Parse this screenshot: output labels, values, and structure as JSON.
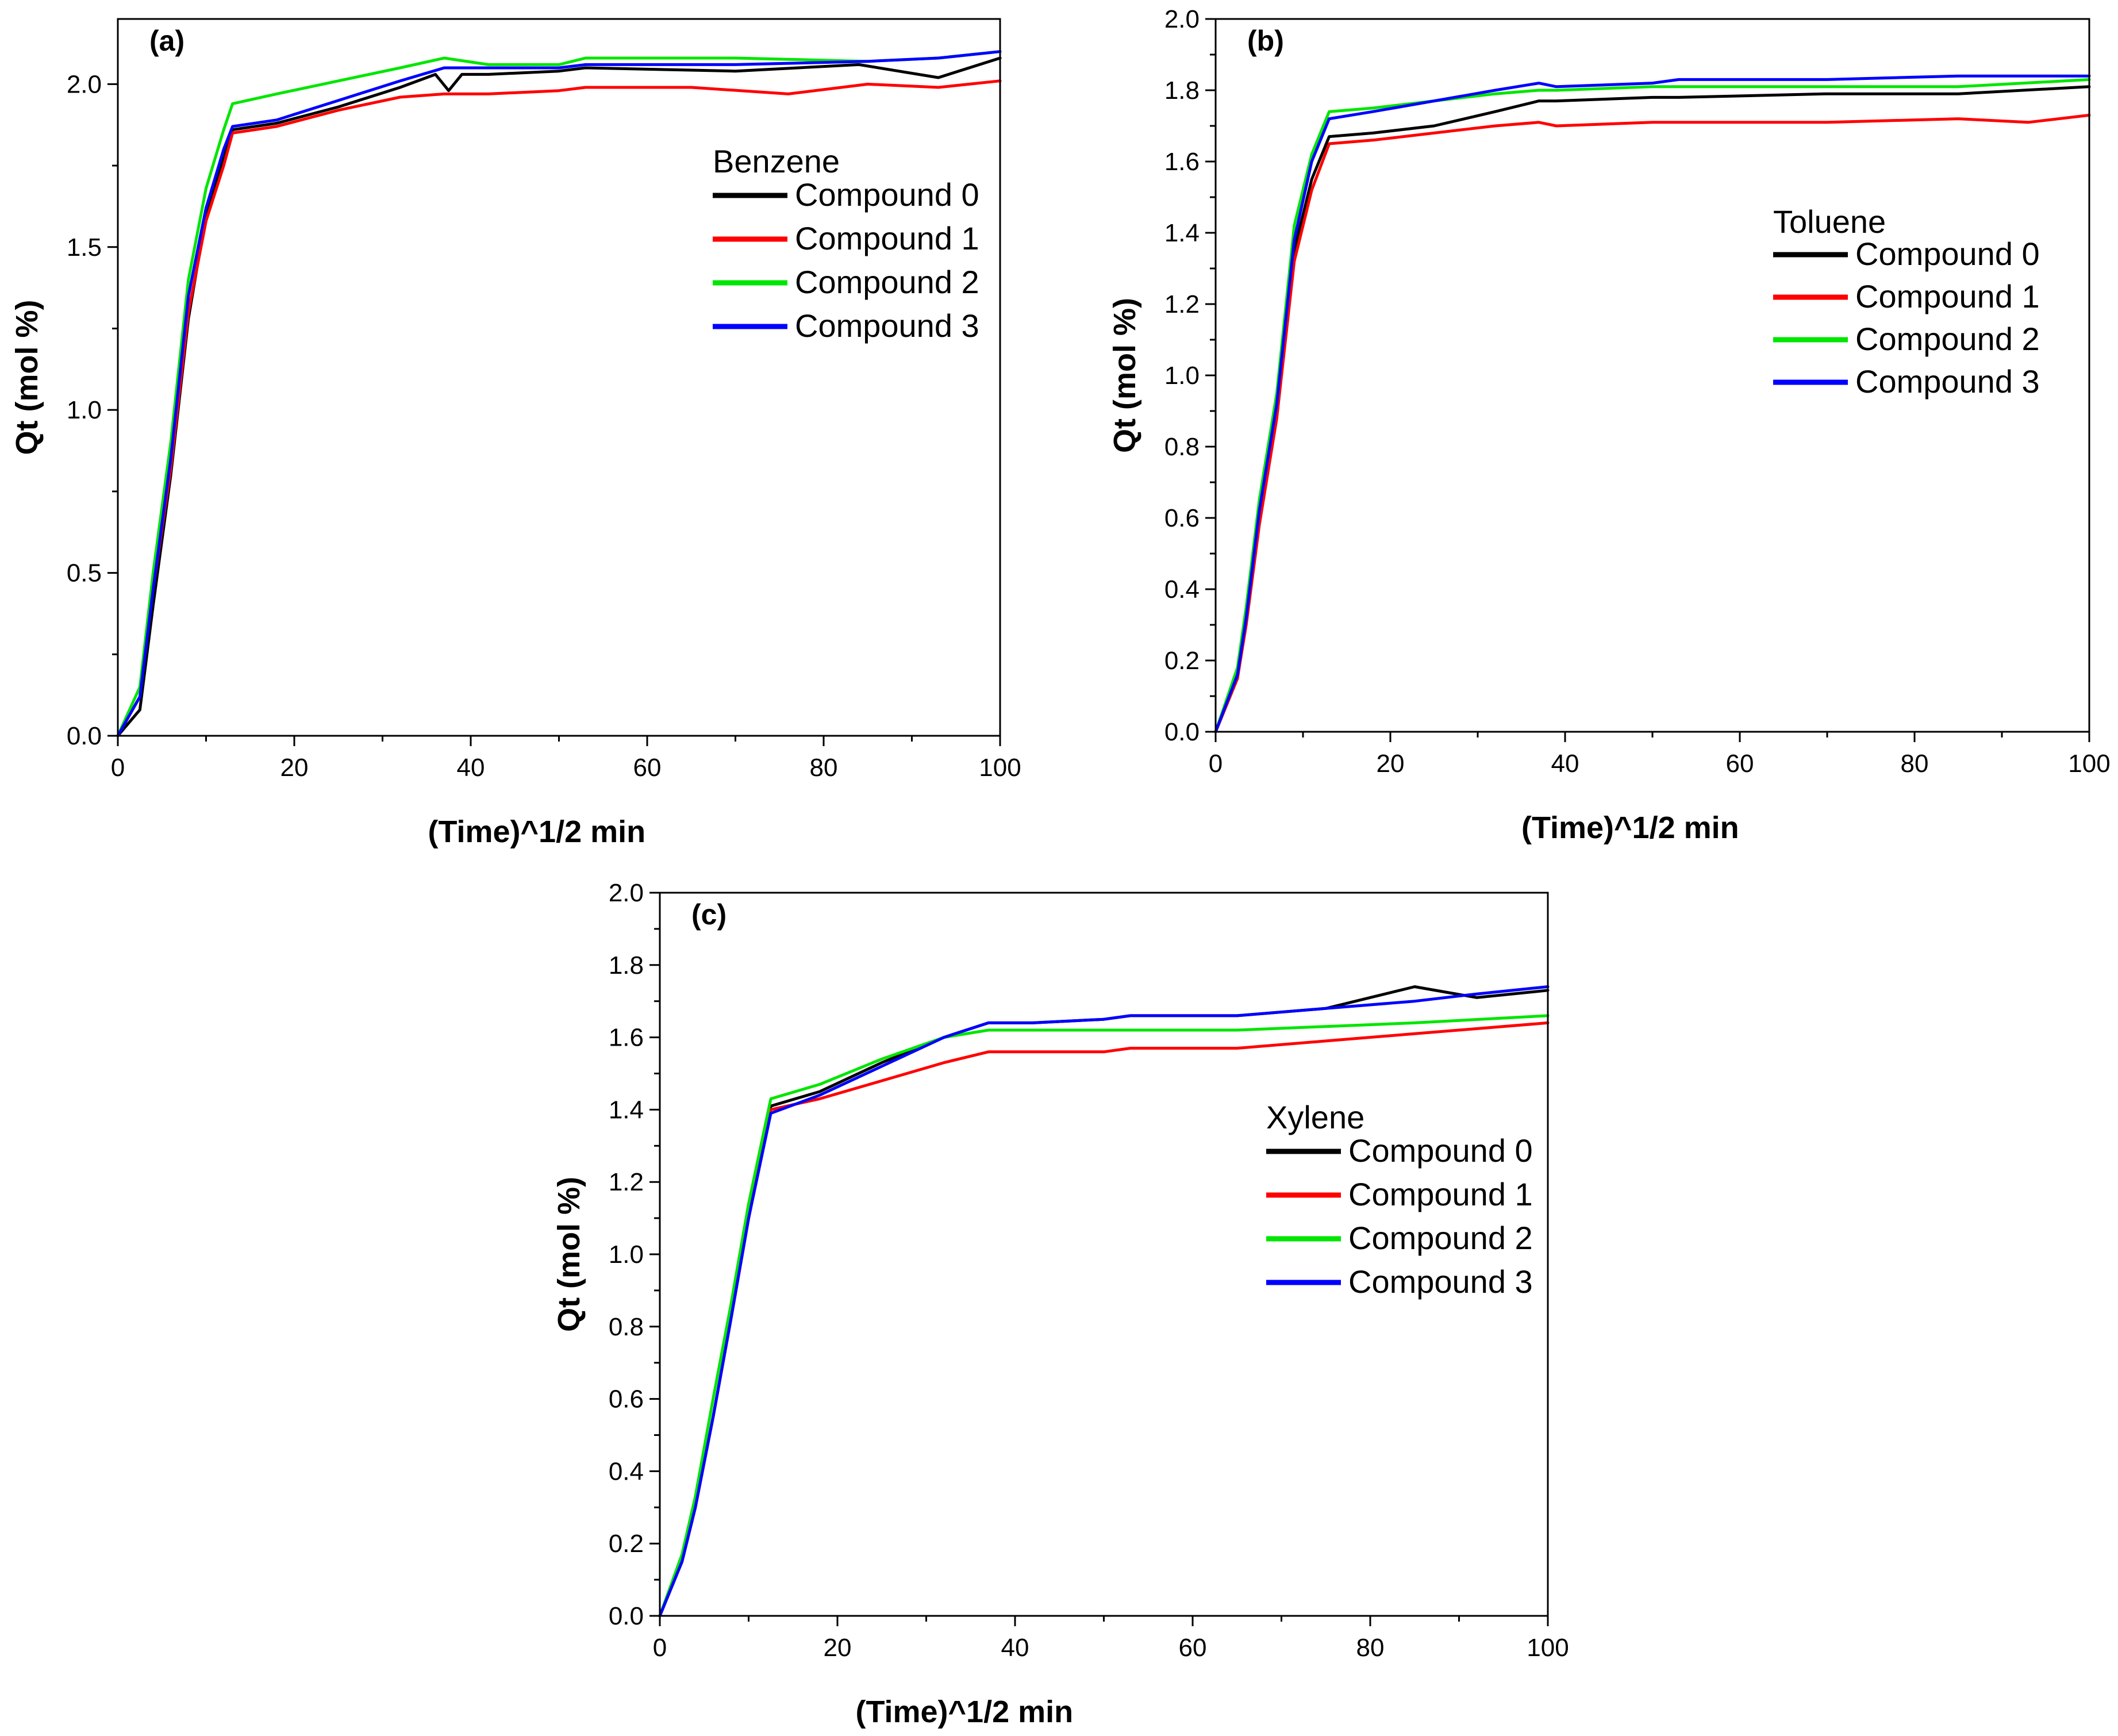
{
  "colors": {
    "compound0": "#000000",
    "compound1": "#ff0000",
    "compound2": "#00e600",
    "compound3": "#0000ff"
  },
  "chart_data": [
    {
      "type": "line",
      "panel": "(a)",
      "legend_title": "Benzene",
      "xlabel": "(Time)^1/2 min",
      "ylabel": "Qt (mol %)",
      "xlim": [
        0,
        100
      ],
      "ylim": [
        0,
        2.2
      ],
      "xticks": [
        0,
        20,
        40,
        60,
        80,
        100
      ],
      "yticks": [
        0.0,
        0.5,
        1.0,
        1.5,
        2.0
      ],
      "ytick_labels": [
        "0.0",
        "0.5",
        "1.0",
        "1.5",
        "2.0"
      ],
      "series": [
        {
          "name": "Compound 0",
          "color": "#000000",
          "x": [
            0,
            2.5,
            4,
            6,
            8,
            10,
            12,
            13,
            18,
            25,
            32,
            36,
            37.5,
            39,
            42,
            50,
            53,
            70,
            84,
            93,
            100
          ],
          "y": [
            0,
            0.08,
            0.4,
            0.8,
            1.28,
            1.6,
            1.78,
            1.86,
            1.88,
            1.93,
            1.99,
            2.03,
            1.98,
            2.03,
            2.03,
            2.04,
            2.05,
            2.04,
            2.06,
            2.02,
            2.08
          ]
        },
        {
          "name": "Compound 1",
          "color": "#ff0000",
          "x": [
            0,
            2.5,
            4,
            6,
            8,
            10,
            12,
            13,
            18,
            25,
            32,
            37,
            42,
            50,
            53,
            65,
            76,
            85,
            93,
            100
          ],
          "y": [
            0,
            0.12,
            0.45,
            0.82,
            1.3,
            1.58,
            1.75,
            1.85,
            1.87,
            1.92,
            1.96,
            1.97,
            1.97,
            1.98,
            1.99,
            1.99,
            1.97,
            2.0,
            1.99,
            2.01
          ]
        },
        {
          "name": "Compound 2",
          "color": "#00e600",
          "x": [
            0,
            2.5,
            4,
            6,
            8,
            10,
            12,
            13,
            18,
            25,
            32,
            37,
            42,
            50,
            53,
            70,
            85,
            93,
            100
          ],
          "y": [
            0,
            0.15,
            0.5,
            0.9,
            1.4,
            1.68,
            1.86,
            1.94,
            1.97,
            2.01,
            2.05,
            2.08,
            2.06,
            2.06,
            2.08,
            2.08,
            2.07,
            2.08,
            2.1
          ]
        },
        {
          "name": "Compound 3",
          "color": "#0000ff",
          "x": [
            0,
            2.5,
            4,
            6,
            8,
            10,
            12,
            13,
            18,
            25,
            32,
            37,
            39,
            42,
            50,
            53,
            70,
            85,
            93,
            100
          ],
          "y": [
            0,
            0.12,
            0.45,
            0.85,
            1.35,
            1.62,
            1.8,
            1.87,
            1.89,
            1.95,
            2.01,
            2.05,
            2.05,
            2.05,
            2.05,
            2.06,
            2.06,
            2.07,
            2.08,
            2.1
          ]
        }
      ]
    },
    {
      "type": "line",
      "panel": "(b)",
      "legend_title": "Toluene",
      "xlabel": "(Time)^1/2 min",
      "ylabel": "Qt (mol %)",
      "xlim": [
        0,
        100
      ],
      "ylim": [
        0,
        2.0
      ],
      "xticks": [
        0,
        20,
        40,
        60,
        80,
        100
      ],
      "yticks": [
        0.0,
        0.2,
        0.4,
        0.6,
        0.8,
        1.0,
        1.2,
        1.4,
        1.6,
        1.8,
        2.0
      ],
      "ytick_labels": [
        "0.0",
        "0.2",
        "0.4",
        "0.6",
        "0.8",
        "1.0",
        "1.2",
        "1.4",
        "1.6",
        "1.8",
        "2.0"
      ],
      "series": [
        {
          "name": "Compound 0",
          "color": "#000000",
          "x": [
            0,
            2.5,
            3.5,
            5,
            7,
            9,
            11,
            13,
            18,
            25,
            32,
            37,
            39,
            50,
            53,
            70,
            85,
            100
          ],
          "y": [
            0,
            0.15,
            0.32,
            0.6,
            0.9,
            1.35,
            1.55,
            1.67,
            1.68,
            1.7,
            1.74,
            1.77,
            1.77,
            1.78,
            1.78,
            1.79,
            1.79,
            1.81
          ]
        },
        {
          "name": "Compound 1",
          "color": "#ff0000",
          "x": [
            0,
            2.5,
            3.5,
            5,
            7,
            9,
            11,
            13,
            18,
            25,
            32,
            37,
            39,
            50,
            53,
            70,
            85,
            93,
            100
          ],
          "y": [
            0,
            0.15,
            0.3,
            0.58,
            0.88,
            1.32,
            1.52,
            1.65,
            1.66,
            1.68,
            1.7,
            1.71,
            1.7,
            1.71,
            1.71,
            1.71,
            1.72,
            1.71,
            1.73
          ]
        },
        {
          "name": "Compound 2",
          "color": "#00e600",
          "x": [
            0,
            2.5,
            3.5,
            5,
            7,
            9,
            11,
            13,
            18,
            25,
            32,
            37,
            39,
            50,
            53,
            70,
            85,
            100
          ],
          "y": [
            0,
            0.18,
            0.35,
            0.65,
            0.95,
            1.42,
            1.62,
            1.74,
            1.75,
            1.77,
            1.79,
            1.8,
            1.8,
            1.81,
            1.81,
            1.81,
            1.81,
            1.83
          ]
        },
        {
          "name": "Compound 3",
          "color": "#0000ff",
          "x": [
            0,
            2.5,
            3.5,
            5,
            7,
            9,
            11,
            13,
            18,
            25,
            32,
            37,
            39,
            50,
            53,
            70,
            85,
            100
          ],
          "y": [
            0,
            0.16,
            0.32,
            0.62,
            0.92,
            1.38,
            1.6,
            1.72,
            1.74,
            1.77,
            1.8,
            1.82,
            1.81,
            1.82,
            1.83,
            1.83,
            1.84,
            1.84
          ]
        }
      ]
    },
    {
      "type": "line",
      "panel": "(c)",
      "legend_title": "Xylene",
      "xlabel": "(Time)^1/2 min",
      "ylabel": "Qt (mol %)",
      "xlim": [
        0,
        100
      ],
      "ylim": [
        0,
        2.0
      ],
      "xticks": [
        0,
        20,
        40,
        60,
        80,
        100
      ],
      "yticks": [
        0.0,
        0.2,
        0.4,
        0.6,
        0.8,
        1.0,
        1.2,
        1.4,
        1.6,
        1.8,
        2.0
      ],
      "ytick_labels": [
        "0.0",
        "0.2",
        "0.4",
        "0.6",
        "0.8",
        "1.0",
        "1.2",
        "1.4",
        "1.6",
        "1.8",
        "2.0"
      ],
      "series": [
        {
          "name": "Compound 0",
          "color": "#000000",
          "x": [
            0,
            2.5,
            4,
            6,
            8,
            10,
            12.5,
            18,
            25,
            32,
            37,
            42,
            50,
            53,
            65,
            75,
            85,
            92,
            100
          ],
          "y": [
            0,
            0.15,
            0.3,
            0.55,
            0.82,
            1.1,
            1.41,
            1.45,
            1.53,
            1.6,
            1.64,
            1.64,
            1.65,
            1.66,
            1.66,
            1.68,
            1.74,
            1.71,
            1.73
          ]
        },
        {
          "name": "Compound 1",
          "color": "#ff0000",
          "x": [
            0,
            2.5,
            4,
            6,
            8,
            10,
            12.5,
            18,
            25,
            32,
            37,
            42,
            50,
            53,
            65,
            75,
            85,
            100
          ],
          "y": [
            0,
            0.15,
            0.3,
            0.55,
            0.82,
            1.1,
            1.4,
            1.43,
            1.48,
            1.53,
            1.56,
            1.56,
            1.56,
            1.57,
            1.57,
            1.59,
            1.61,
            1.64
          ]
        },
        {
          "name": "Compound 2",
          "color": "#00e600",
          "x": [
            0,
            2.5,
            4,
            6,
            8,
            10,
            12.5,
            18,
            25,
            32,
            37,
            42,
            50,
            53,
            65,
            75,
            85,
            100
          ],
          "y": [
            0,
            0.17,
            0.33,
            0.6,
            0.86,
            1.14,
            1.43,
            1.47,
            1.54,
            1.6,
            1.62,
            1.62,
            1.62,
            1.62,
            1.62,
            1.63,
            1.64,
            1.66
          ]
        },
        {
          "name": "Compound 3",
          "color": "#0000ff",
          "x": [
            0,
            2.5,
            4,
            6,
            8,
            10,
            12.5,
            18,
            25,
            32,
            37,
            42,
            50,
            53,
            65,
            75,
            85,
            92,
            100
          ],
          "y": [
            0,
            0.15,
            0.3,
            0.55,
            0.82,
            1.1,
            1.39,
            1.44,
            1.52,
            1.6,
            1.64,
            1.64,
            1.65,
            1.66,
            1.66,
            1.68,
            1.7,
            1.72,
            1.74
          ]
        }
      ]
    }
  ]
}
